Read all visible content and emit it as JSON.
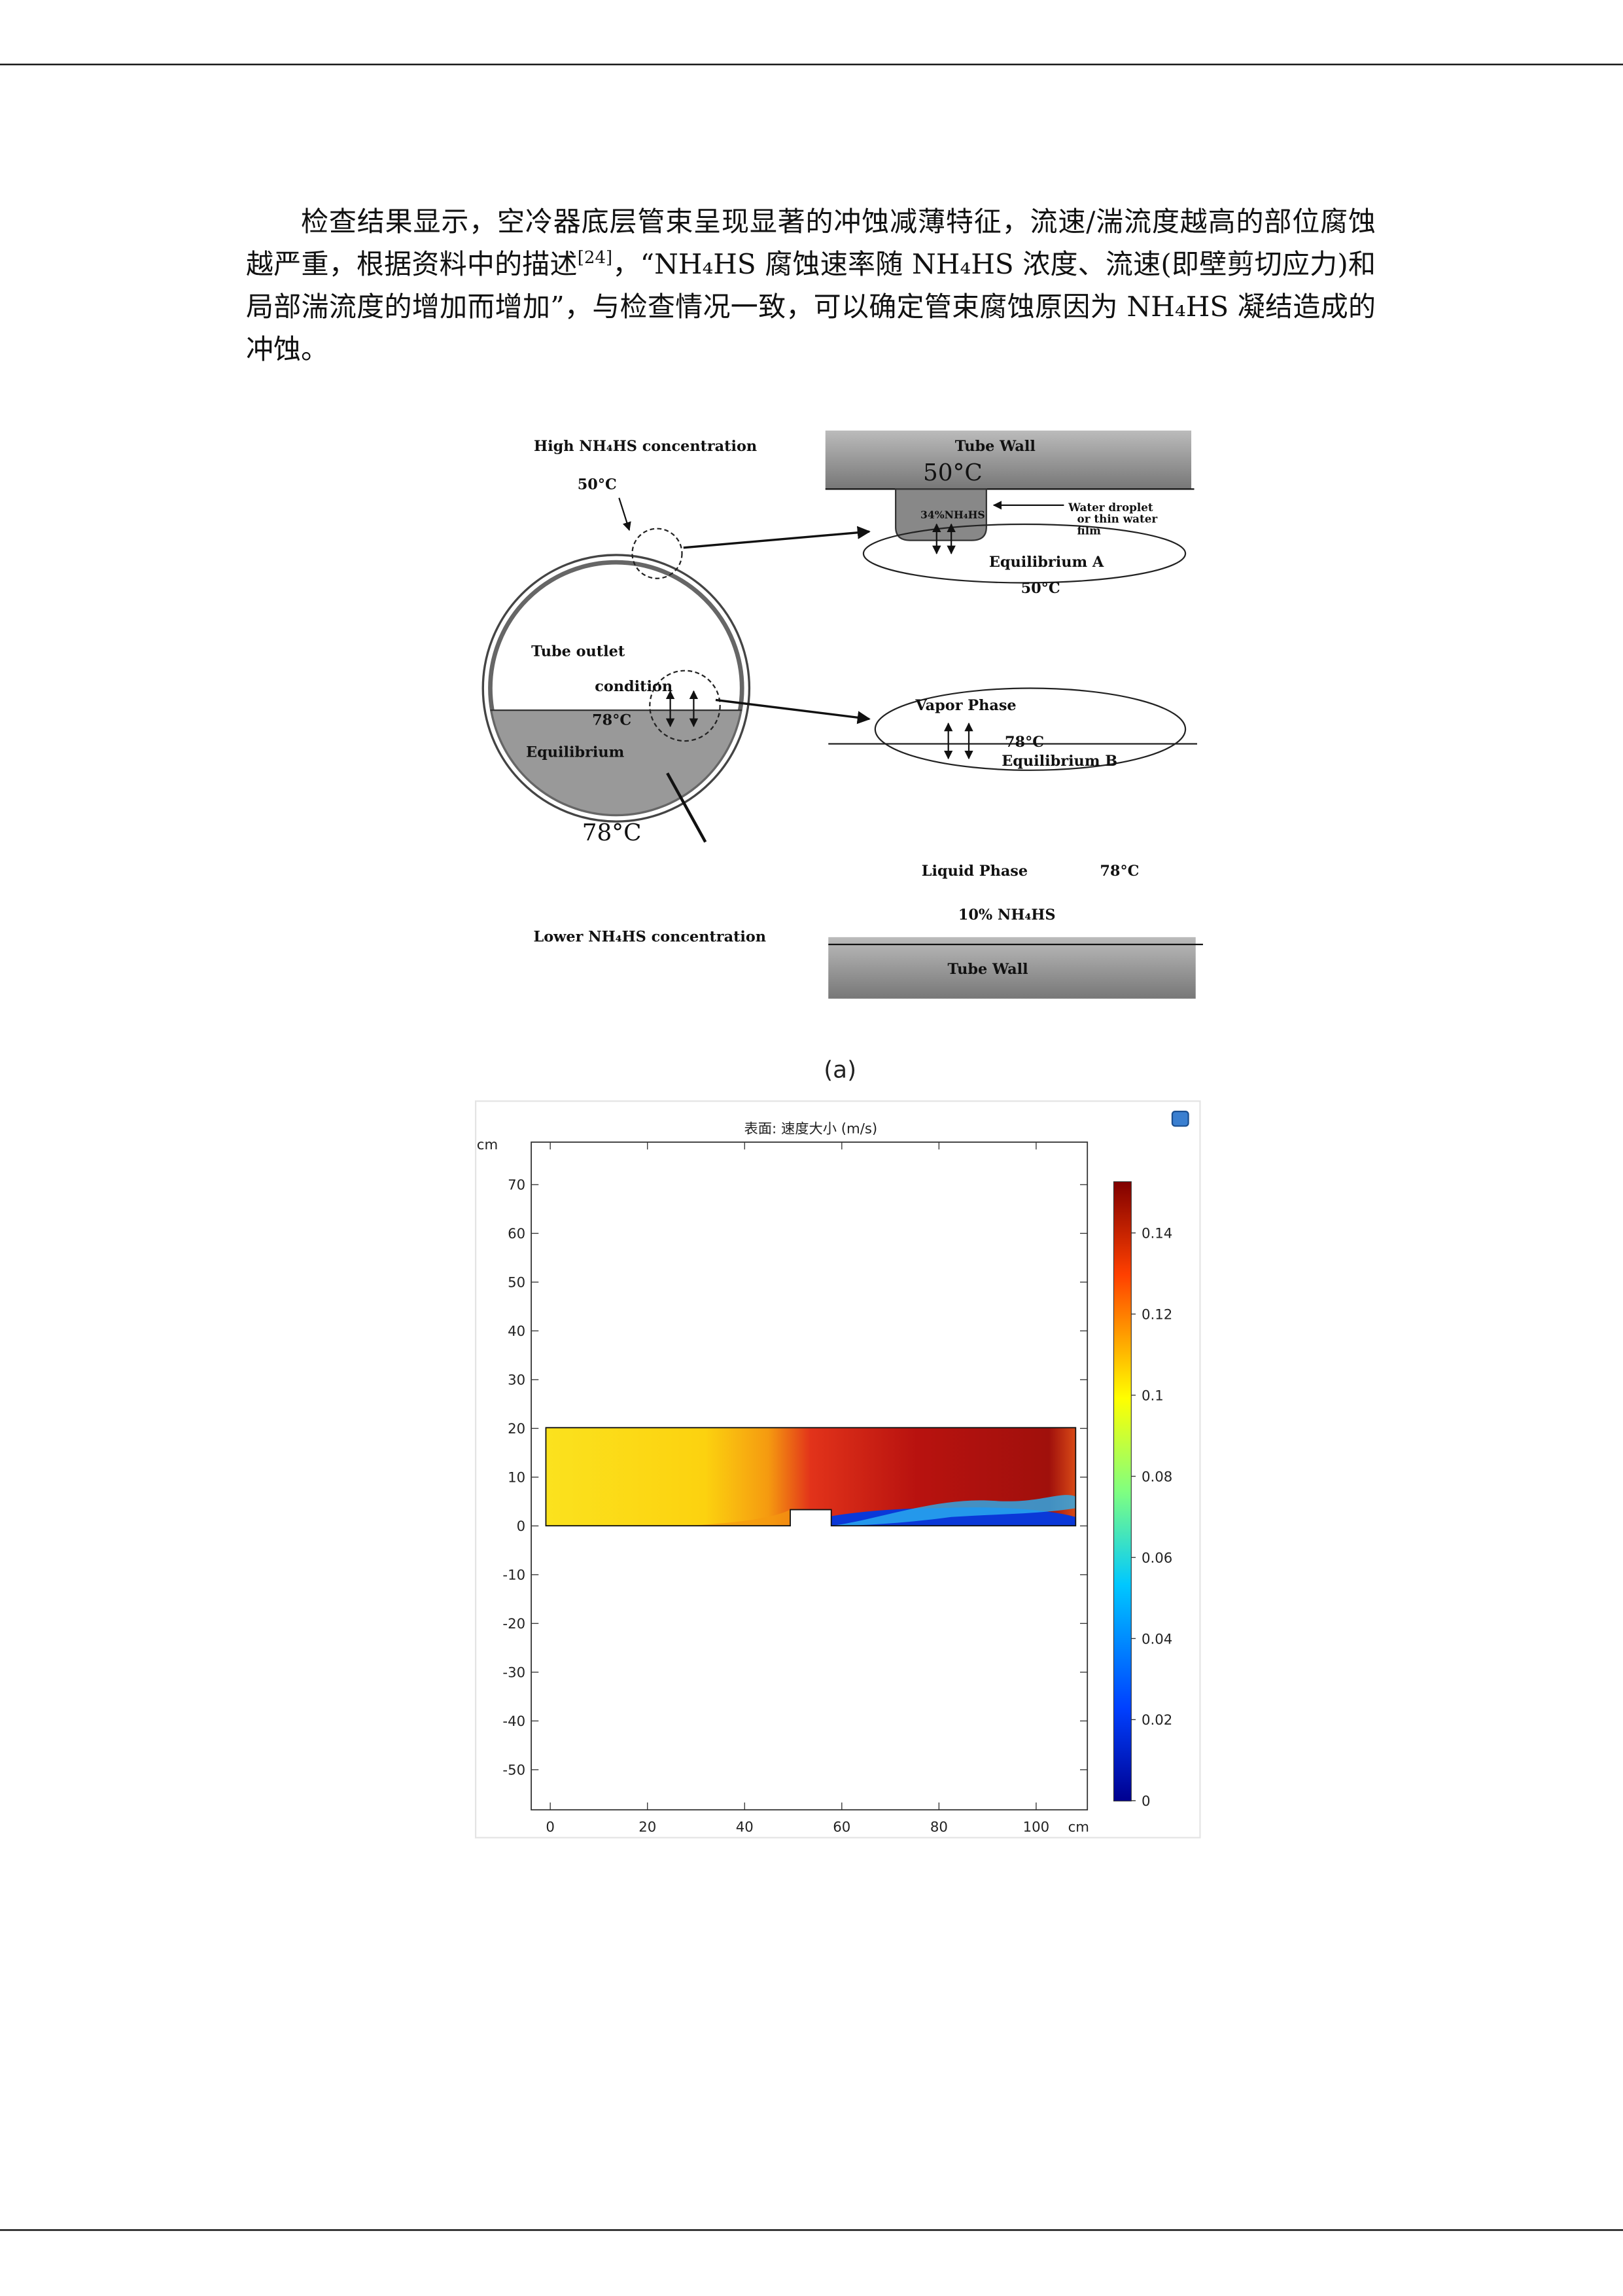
{
  "paragraph": {
    "parts": [
      "检查结果显示，空冷器底层管束呈现显著的冲蚀减薄特征，流速/湍流度越高的部位腐蚀越严重，根据资料中的描述",
      "[24]",
      "，“NH₄HS 腐蚀速率随 NH₄HS 浓度、流速(即壁剪切应力)和局部湍流度的增加而增加”，与检查情况一致，可以确定管束腐蚀原因为 NH₄HS 凝结造成的冲蚀。"
    ]
  },
  "figure_a": {
    "labels": {
      "high": "High NH₄HS concentration",
      "t1": "50°C",
      "wall_top": "Tube Wall",
      "t2": "50°C",
      "drop_conc": "34%NH₄HS",
      "water1": "Water droplet",
      "water2": "or thin water",
      "water3": "film",
      "eqA": "Equilibrium A",
      "t3": "50°C",
      "outlet1": "Tube outlet",
      "outlet2": "condition",
      "t4": "78°C",
      "eq": "Equilibrium",
      "t5": "78°C",
      "vapor": "Vapor Phase",
      "t6": "78°C",
      "eqB": "Equilibrium B",
      "liquid": "Liquid Phase",
      "t7": "78°C",
      "low_conc": "10% NH₄HS",
      "lower": "Lower NH₄HS concentration",
      "wall_bottom": "Tube Wall"
    },
    "caption": "(a)"
  },
  "figure_b": {
    "title": "表面: 速度大小 (m/s)",
    "y_unit": "cm",
    "x_unit": "cm",
    "yticks": [
      "70",
      "60",
      "50",
      "40",
      "30",
      "20",
      "10",
      "0",
      "-10",
      "-20",
      "-30",
      "-40",
      "-50"
    ],
    "xticks": [
      "0",
      "20",
      "40",
      "60",
      "80",
      "100"
    ],
    "colorbar_ticks": [
      "0.14",
      "0.12",
      "0.1",
      "0.08",
      "0.06",
      "0.04",
      "0.02",
      "0"
    ]
  }
}
